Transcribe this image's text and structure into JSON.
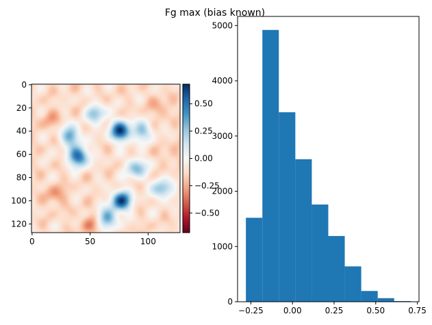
{
  "chart_data": [
    {
      "type": "heatmap",
      "title": "Fg max (bias known)",
      "colormap": "RdBu",
      "x_ticks": [
        0,
        50,
        100
      ],
      "y_ticks": [
        0,
        20,
        40,
        60,
        80,
        100,
        120
      ],
      "xlim": [
        0,
        127
      ],
      "ylim": [
        127,
        0
      ],
      "colorbar": {
        "vmin": -0.68,
        "vmax": 0.68,
        "ticks": [
          0.5,
          0.25,
          0.0,
          -0.25,
          -0.5
        ],
        "tick_labels": [
          "0.50",
          "0.25",
          "0.00",
          "−0.25",
          "−0.50"
        ]
      },
      "features": [
        {
          "x": 76,
          "y": 40,
          "value": 0.62
        },
        {
          "x": 40,
          "y": 62,
          "value": 0.55
        },
        {
          "x": 77,
          "y": 100,
          "value": 0.6
        },
        {
          "x": 33,
          "y": 44,
          "value": 0.35
        },
        {
          "x": 90,
          "y": 72,
          "value": 0.3
        },
        {
          "x": 112,
          "y": 90,
          "value": 0.3
        },
        {
          "x": 65,
          "y": 115,
          "value": 0.35
        },
        {
          "x": 55,
          "y": 25,
          "value": 0.25
        },
        {
          "x": 95,
          "y": 40,
          "value": 0.25
        },
        {
          "x": 20,
          "y": 95,
          "value": -0.3
        },
        {
          "x": 15,
          "y": 30,
          "value": -0.25
        },
        {
          "x": 110,
          "y": 20,
          "value": -0.25
        },
        {
          "x": 50,
          "y": 120,
          "value": -0.3
        },
        {
          "x": 120,
          "y": 60,
          "value": -0.2
        }
      ]
    },
    {
      "type": "bar",
      "subtype": "histogram",
      "bin_edges": [
        -0.28,
        -0.181,
        -0.082,
        0.017,
        0.116,
        0.215,
        0.314,
        0.413,
        0.512,
        0.611,
        0.71
      ],
      "counts": [
        1520,
        4920,
        3430,
        2580,
        1760,
        1190,
        640,
        195,
        65,
        12
      ],
      "color": "#1f77b4",
      "xlim": [
        -0.33,
        0.76
      ],
      "ylim": [
        0,
        5165
      ],
      "x_ticks": [
        -0.25,
        0.0,
        0.25,
        0.5,
        0.75
      ],
      "x_tick_labels": [
        "−0.25",
        "0.00",
        "0.25",
        "0.50",
        "0.75"
      ],
      "y_ticks": [
        0,
        1000,
        2000,
        3000,
        4000,
        5000
      ]
    }
  ]
}
